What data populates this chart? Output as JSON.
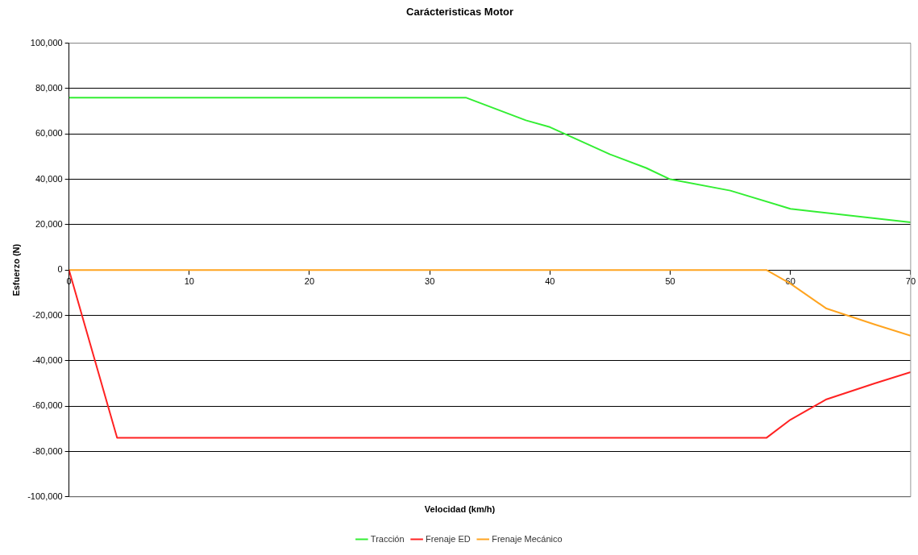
{
  "chart_data": {
    "type": "line",
    "title": "Carácteristicas Motor",
    "xlabel": "Velocidad (km/h)",
    "ylabel": "Esfuerzo (N)",
    "xlim": [
      0,
      70
    ],
    "xticks": [
      0,
      10,
      20,
      30,
      40,
      50,
      60,
      70
    ],
    "ylim": [
      -100000,
      100000
    ],
    "yticks": [
      {
        "value": -100000,
        "label": "-100,000"
      },
      {
        "value": -80000,
        "label": "-80,000"
      },
      {
        "value": -60000,
        "label": "-60,000"
      },
      {
        "value": -40000,
        "label": "-40,000"
      },
      {
        "value": -20000,
        "label": "-20,000"
      },
      0,
      {
        "value": 20000,
        "label": "20,000"
      },
      {
        "value": 40000,
        "label": "40,000"
      },
      {
        "value": 60000,
        "label": "60,000"
      },
      {
        "value": 80000,
        "label": "80,000"
      },
      {
        "value": 100000,
        "label": "100,000"
      }
    ],
    "grid": "y",
    "legend": "bottom",
    "marker": "none",
    "line_style": "solid",
    "series": [
      {
        "name": "Tracción",
        "color": "#33ee33",
        "x": [
          0,
          33,
          38,
          40,
          45,
          48,
          50,
          55,
          60,
          70
        ],
        "values": [
          76000,
          76000,
          66000,
          63000,
          51000,
          45000,
          40000,
          35000,
          27000,
          21000
        ]
      },
      {
        "name": "Frenaje ED",
        "color": "#ff2222",
        "x": [
          0,
          4,
          58,
          60,
          63,
          67,
          70
        ],
        "values": [
          0,
          -74000,
          -74000,
          -66000,
          -57000,
          -50000,
          -45000
        ]
      },
      {
        "name": "Frenaje Mecánico",
        "color": "#ffa420",
        "x": [
          0,
          58,
          60,
          63,
          67,
          70
        ],
        "values": [
          0,
          0,
          -6000,
          -17000,
          -24000,
          -29000
        ]
      }
    ]
  }
}
